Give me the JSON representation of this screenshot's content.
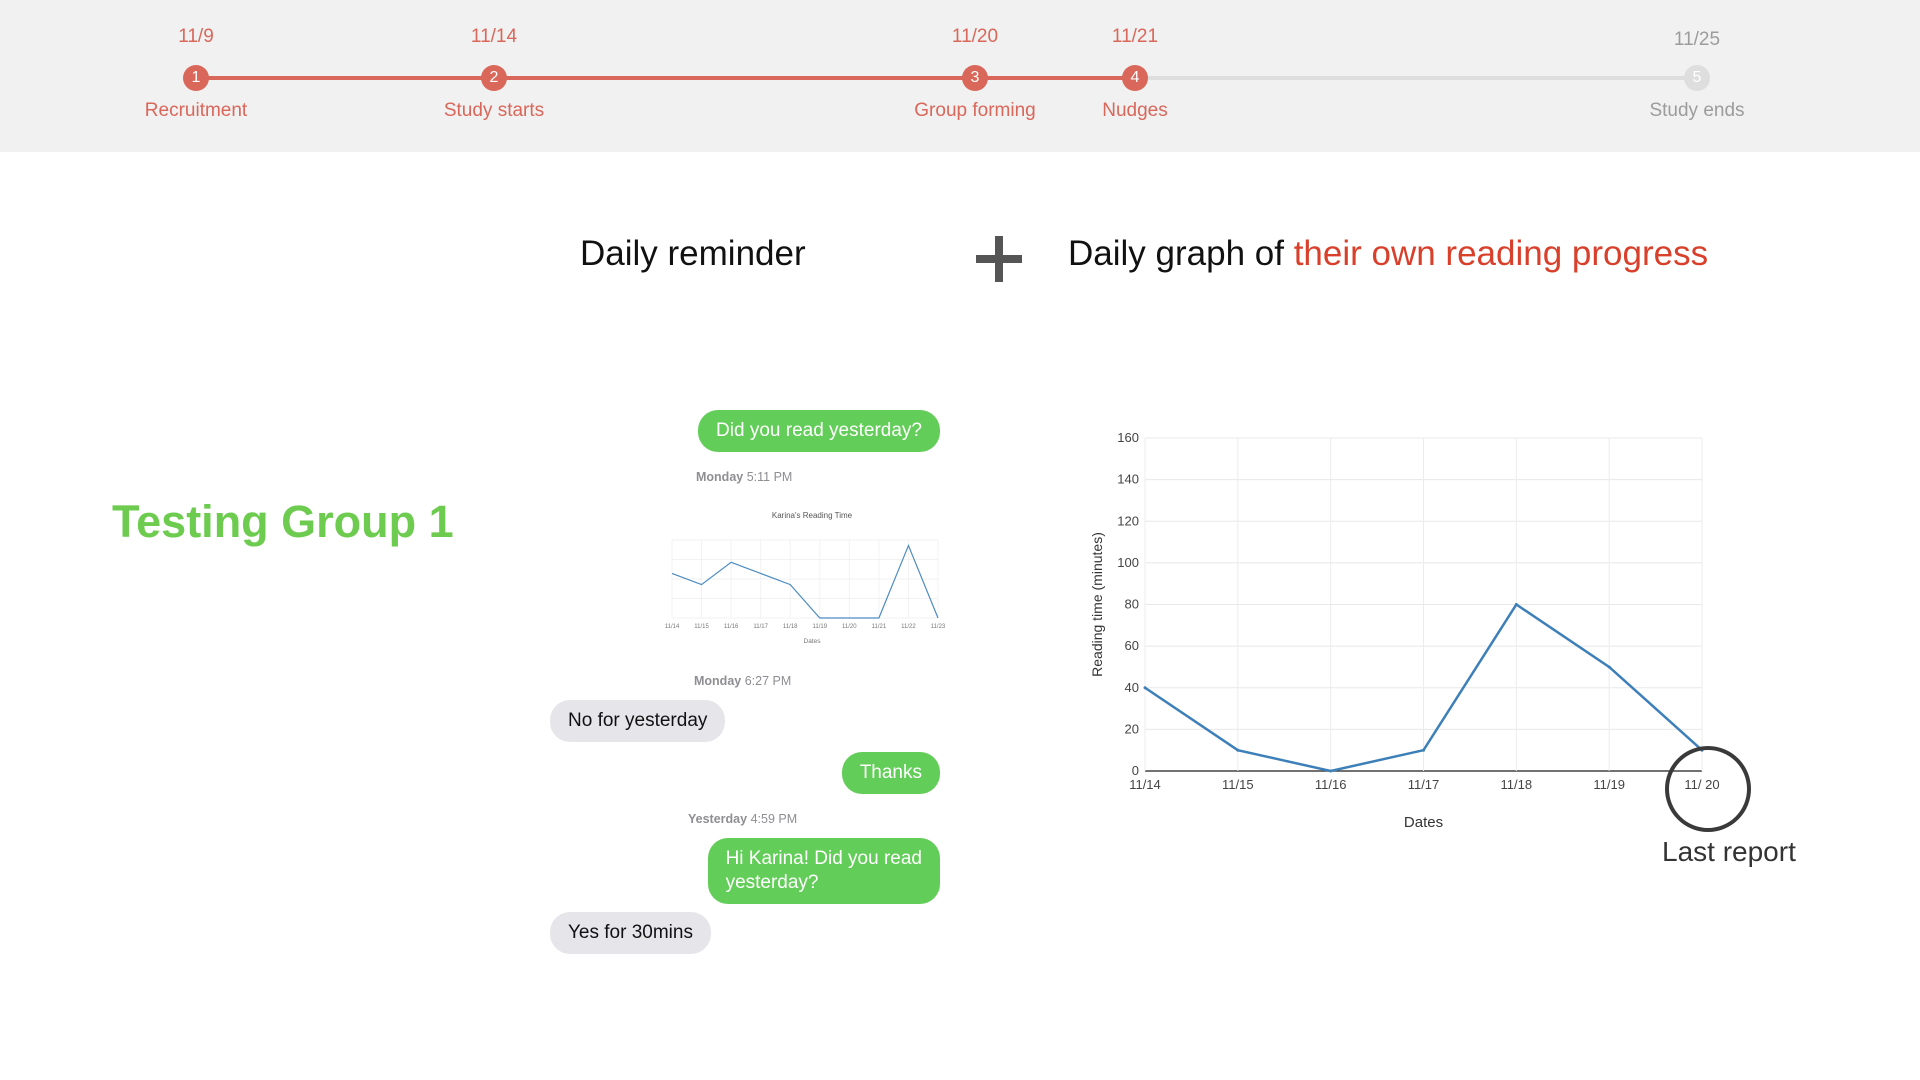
{
  "timeline": {
    "steps": [
      {
        "date": "11/9",
        "number": "1",
        "label": "Recruitment",
        "active": true
      },
      {
        "date": "11/14",
        "number": "2",
        "label": "Study starts",
        "active": true
      },
      {
        "date": "11/20",
        "number": "3",
        "label": "Group forming",
        "active": true
      },
      {
        "date": "11/21",
        "number": "4",
        "label": "Nudges",
        "active": true
      },
      {
        "date": "11/25",
        "number": "5",
        "label": "Study ends",
        "active": false
      }
    ],
    "colors": {
      "active": "#d9675a",
      "inactive": "#dedede"
    }
  },
  "headings": {
    "left": "Daily reminder",
    "right_prefix": "Daily graph of",
    "right_highlight": "their own reading progress"
  },
  "group_title": "Testing Group 1",
  "chat": {
    "messages": [
      {
        "type": "sent",
        "text": "Did you read yesterday?"
      },
      {
        "type": "stamp",
        "day": "Monday",
        "time": "5:11 PM"
      },
      {
        "type": "image",
        "title": "Karina's Reading Time",
        "xlabel": "Dates"
      },
      {
        "type": "stamp",
        "day": "Monday",
        "time": "6:27 PM"
      },
      {
        "type": "received",
        "text": "No for yesterday"
      },
      {
        "type": "sent",
        "text": "Thanks"
      },
      {
        "type": "stamp",
        "day": "Yesterday",
        "time": "4:59 PM"
      },
      {
        "type": "sent",
        "text": "Hi Karina! Did you read\nyesterday?"
      },
      {
        "type": "received",
        "text": "Yes for 30mins"
      }
    ]
  },
  "chart_data": {
    "type": "line",
    "x": [
      "11/14",
      "11/15",
      "11/16",
      "11/17",
      "11/18",
      "11/19",
      "11/ 20"
    ],
    "values": [
      40,
      10,
      0,
      10,
      80,
      50,
      10
    ],
    "ylim": [
      0,
      160
    ],
    "yticks": [
      0,
      20,
      40,
      60,
      80,
      100,
      120,
      140,
      160
    ],
    "xlabel": "Dates",
    "ylabel": "Reading time (minutes)",
    "grid": true,
    "line_color": "#3d7fb8"
  },
  "mini_chart_data": {
    "type": "line",
    "title": "Karina's Reading Time",
    "x": [
      "11/14",
      "11/15",
      "11/16",
      "11/17",
      "11/18",
      "11/19",
      "11/20",
      "11/21",
      "11/22",
      "11/23"
    ],
    "values": [
      40,
      30,
      50,
      40,
      30,
      0,
      0,
      0,
      65,
      0
    ],
    "xlabel": "Dates"
  },
  "annotation": {
    "label": "Last report"
  }
}
